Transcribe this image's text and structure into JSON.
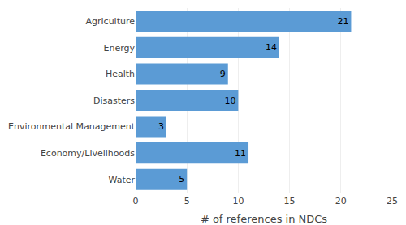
{
  "chart_data": {
    "type": "bar",
    "orientation": "horizontal",
    "categories": [
      "Agriculture",
      "Energy",
      "Health",
      "Disasters",
      "Environmental Management",
      "Economy/Livelihoods",
      "Water"
    ],
    "values": [
      21,
      14,
      9,
      10,
      3,
      11,
      5
    ],
    "color": "#5b9bd5",
    "xlabel": "# of references in NDCs",
    "xlim": [
      0,
      25
    ],
    "xticks": [
      0,
      5,
      10,
      15,
      20,
      25
    ],
    "grid": true,
    "data_labels": true
  }
}
